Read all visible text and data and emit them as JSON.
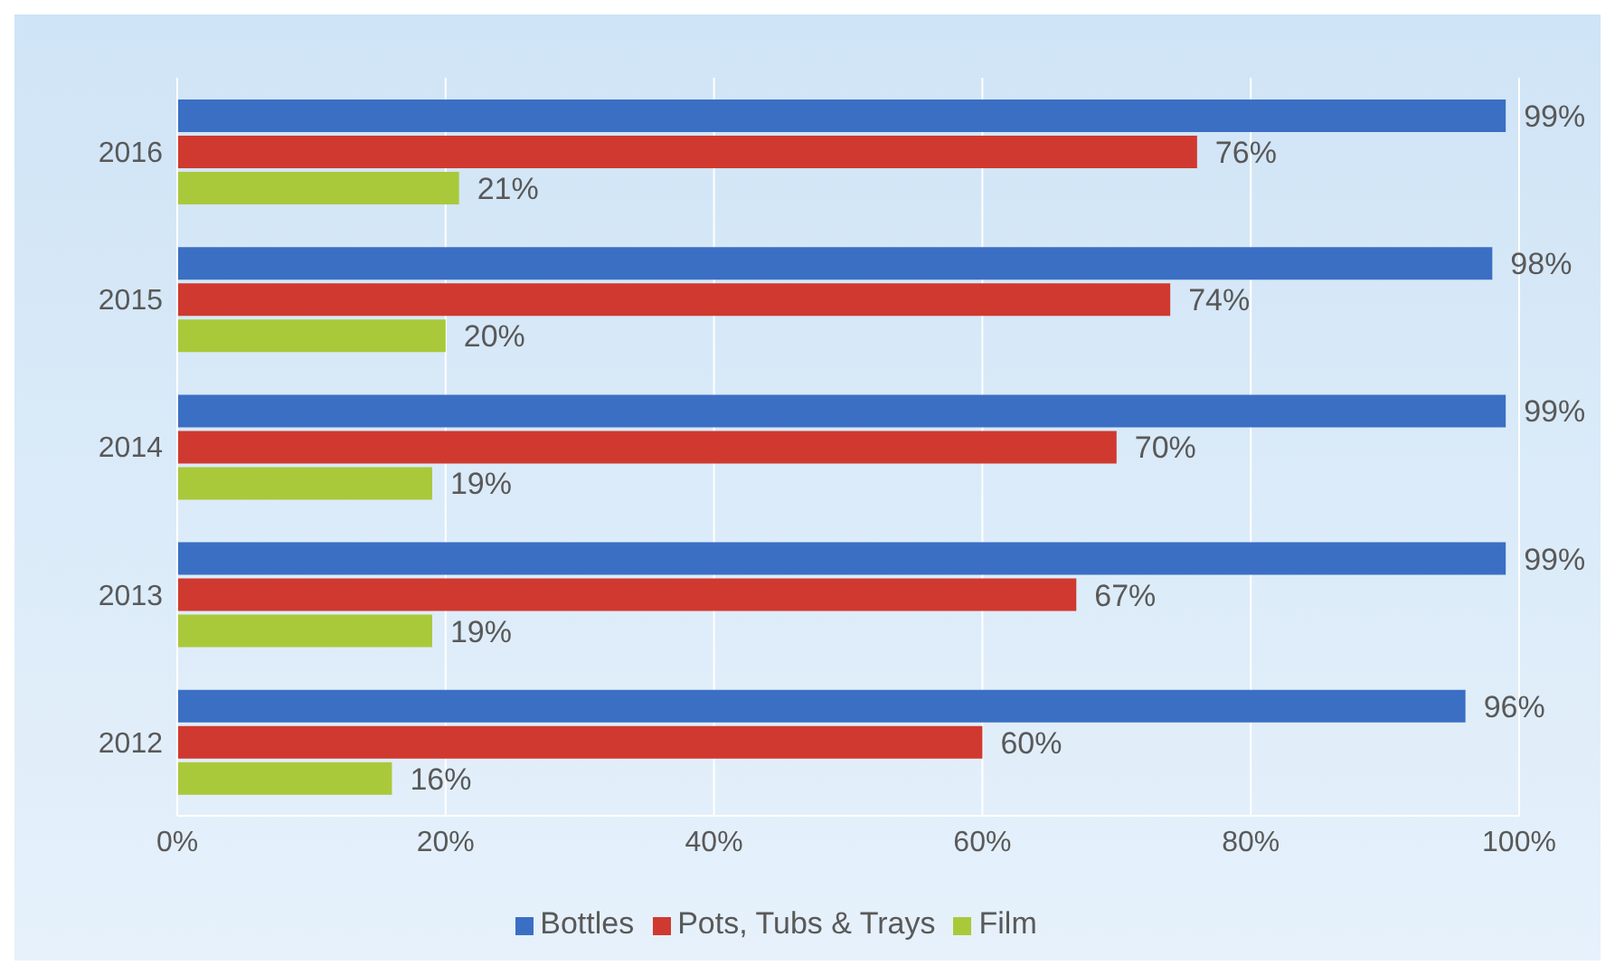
{
  "chart_data": {
    "type": "bar",
    "orientation": "horizontal",
    "categories": [
      "2016",
      "2015",
      "2014",
      "2013",
      "2012"
    ],
    "series": [
      {
        "name": "Bottles",
        "color": "#3b6fc4",
        "values": [
          99,
          98,
          99,
          99,
          96
        ],
        "value_labels": [
          "99%",
          "98%",
          "99%",
          "99%",
          "96%"
        ]
      },
      {
        "name": "Pots, Tubs & Trays",
        "color": "#d0392f",
        "values": [
          76,
          74,
          70,
          67,
          60
        ],
        "value_labels": [
          "76%",
          "74%",
          "70%",
          "67%",
          "60%"
        ]
      },
      {
        "name": "Film",
        "color": "#a9c93a",
        "values": [
          21,
          20,
          19,
          19,
          16
        ],
        "value_labels": [
          "21%",
          "20%",
          "19%",
          "19%",
          "16%"
        ]
      }
    ],
    "xlim": [
      0,
      100
    ],
    "xticks": [
      {
        "value": 0,
        "label": "0%"
      },
      {
        "value": 20,
        "label": "20%"
      },
      {
        "value": 40,
        "label": "40%"
      },
      {
        "value": 60,
        "label": "60%"
      },
      {
        "value": 80,
        "label": "80%"
      },
      {
        "value": 100,
        "label": "100%"
      }
    ],
    "grid": "x",
    "legend": "bottom"
  }
}
